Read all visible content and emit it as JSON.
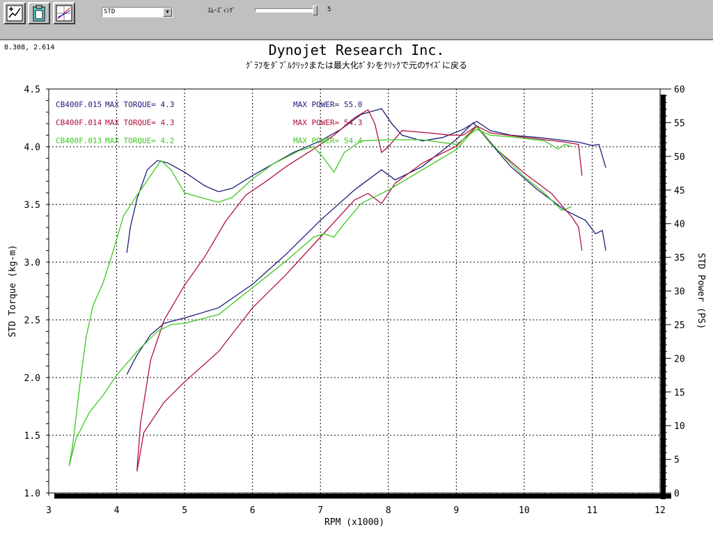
{
  "toolbar": {
    "buttons": [
      {
        "name": "graph-tool-button",
        "icon": "wrench-graph-icon"
      },
      {
        "name": "clipboard-button",
        "icon": "clipboard-icon"
      },
      {
        "name": "chart-window-button",
        "icon": "chart-grid-icon"
      }
    ],
    "combo_value": "STD",
    "smoothing_label": "ｽﾑｰｽﾞｨﾝｸﾞ",
    "smoothing_value": "5",
    "smoothing_level": 1.0
  },
  "cursor_coords": "8.308, 2.614",
  "chart_data": {
    "type": "line",
    "title": "Dynojet  Research  Inc.",
    "subtitle": "ｸﾞﾗﾌをﾀﾞﾌﾞﾙｸﾘｯｸまたは最大化ﾎﾞﾀﾝをｸﾘｯｸで元のｻｲｽﾞに戻る",
    "xlabel": "RPM (x1000)",
    "ylabel_left": "STD Torque (kg-m)",
    "ylabel_right": "STD Power (PS)",
    "xlim": [
      3,
      12
    ],
    "ylim_left": [
      1.0,
      4.5
    ],
    "ylim_right": [
      0,
      60
    ],
    "x_ticks": [
      "3",
      "4",
      "5",
      "6",
      "7",
      "8",
      "9",
      "10",
      "11",
      "12"
    ],
    "y_left_ticks": [
      "1.0",
      "1.5",
      "2.0",
      "2.5",
      "3.0",
      "3.5",
      "4.0",
      "4.5"
    ],
    "y_right_ticks": [
      "0",
      "5",
      "10",
      "15",
      "20",
      "25",
      "30",
      "35",
      "40",
      "45",
      "50",
      "55",
      "60"
    ],
    "grid": true,
    "legend": [
      {
        "file": "CB400F.015",
        "torque": "MAX TORQUE= 4.3",
        "power": "MAX POWER= 55.0",
        "color": "#1c1c78"
      },
      {
        "file": "CB400F.014",
        "torque": "MAX TORQUE= 4.3",
        "power": "MAX POWER= 54.3",
        "color": "#b0103c"
      },
      {
        "file": "CB400F.013",
        "torque": "MAX TORQUE= 4.2",
        "power": "MAX POWER= 54.4",
        "color": "#3cc820"
      }
    ],
    "series": [
      {
        "color": "#1c1c78",
        "axis": "left",
        "kind": "torque",
        "points": [
          [
            4.15,
            3.08
          ],
          [
            4.2,
            3.3
          ],
          [
            4.3,
            3.55
          ],
          [
            4.45,
            3.8
          ],
          [
            4.6,
            3.88
          ],
          [
            4.75,
            3.86
          ],
          [
            5.0,
            3.78
          ],
          [
            5.3,
            3.66
          ],
          [
            5.5,
            3.61
          ],
          [
            5.7,
            3.64
          ],
          [
            6.0,
            3.75
          ],
          [
            6.3,
            3.85
          ],
          [
            6.6,
            3.95
          ],
          [
            7.0,
            4.05
          ],
          [
            7.3,
            4.15
          ],
          [
            7.6,
            4.28
          ],
          [
            7.9,
            4.33
          ],
          [
            8.05,
            4.2
          ],
          [
            8.2,
            4.1
          ],
          [
            8.5,
            4.05
          ],
          [
            8.8,
            4.08
          ],
          [
            9.1,
            4.15
          ],
          [
            9.3,
            4.22
          ],
          [
            9.5,
            4.14
          ],
          [
            9.8,
            4.1
          ],
          [
            10.2,
            4.08
          ],
          [
            10.5,
            4.06
          ],
          [
            10.8,
            4.04
          ],
          [
            11.0,
            4.01
          ],
          [
            11.1,
            4.02
          ],
          [
            11.2,
            3.82
          ]
        ]
      },
      {
        "color": "#1c1c78",
        "axis": "right",
        "kind": "power",
        "points": [
          [
            4.15,
            17.6
          ],
          [
            4.3,
            20.5
          ],
          [
            4.5,
            23.5
          ],
          [
            4.7,
            25.2
          ],
          [
            5.0,
            26.0
          ],
          [
            5.5,
            27.5
          ],
          [
            6.0,
            31.0
          ],
          [
            6.5,
            35.5
          ],
          [
            7.0,
            40.5
          ],
          [
            7.5,
            45.0
          ],
          [
            7.7,
            46.5
          ],
          [
            7.9,
            48.0
          ],
          [
            8.1,
            46.5
          ],
          [
            8.5,
            48.5
          ],
          [
            9.0,
            52.5
          ],
          [
            9.25,
            55.0
          ],
          [
            9.5,
            52.0
          ],
          [
            9.8,
            48.5
          ],
          [
            10.2,
            45.0
          ],
          [
            10.6,
            42.0
          ],
          [
            10.9,
            40.5
          ],
          [
            11.05,
            38.5
          ],
          [
            11.15,
            39.0
          ],
          [
            11.2,
            36.0
          ]
        ]
      },
      {
        "color": "#b0103c",
        "axis": "left",
        "kind": "torque",
        "points": [
          [
            4.3,
            1.2
          ],
          [
            4.35,
            1.6
          ],
          [
            4.5,
            2.15
          ],
          [
            4.7,
            2.5
          ],
          [
            5.0,
            2.8
          ],
          [
            5.3,
            3.05
          ],
          [
            5.6,
            3.35
          ],
          [
            5.9,
            3.58
          ],
          [
            6.2,
            3.7
          ],
          [
            6.5,
            3.83
          ],
          [
            6.9,
            3.98
          ],
          [
            7.2,
            4.1
          ],
          [
            7.5,
            4.25
          ],
          [
            7.7,
            4.32
          ],
          [
            7.8,
            4.2
          ],
          [
            7.9,
            3.95
          ],
          [
            8.0,
            4.0
          ],
          [
            8.2,
            4.14
          ],
          [
            8.6,
            4.12
          ],
          [
            8.9,
            4.1
          ],
          [
            9.1,
            4.1
          ],
          [
            9.3,
            4.18
          ],
          [
            9.5,
            4.12
          ],
          [
            9.9,
            4.09
          ],
          [
            10.3,
            4.06
          ],
          [
            10.6,
            4.04
          ],
          [
            10.8,
            4.02
          ],
          [
            10.85,
            3.75
          ]
        ]
      },
      {
        "color": "#b0103c",
        "axis": "right",
        "kind": "power",
        "points": [
          [
            4.3,
            3.2
          ],
          [
            4.4,
            9.0
          ],
          [
            4.7,
            13.5
          ],
          [
            5.0,
            16.5
          ],
          [
            5.5,
            21.0
          ],
          [
            6.0,
            27.5
          ],
          [
            6.5,
            32.5
          ],
          [
            7.0,
            38.0
          ],
          [
            7.5,
            43.5
          ],
          [
            7.7,
            44.5
          ],
          [
            7.9,
            43.0
          ],
          [
            8.1,
            46.0
          ],
          [
            8.5,
            49.0
          ],
          [
            9.0,
            51.5
          ],
          [
            9.3,
            54.5
          ],
          [
            9.6,
            51.0
          ],
          [
            10.0,
            47.5
          ],
          [
            10.4,
            44.5
          ],
          [
            10.7,
            41.0
          ],
          [
            10.8,
            39.5
          ],
          [
            10.85,
            36.0
          ]
        ]
      },
      {
        "color": "#3cc820",
        "axis": "left",
        "kind": "torque",
        "points": [
          [
            3.3,
            1.24
          ],
          [
            3.35,
            1.4
          ],
          [
            3.45,
            1.9
          ],
          [
            3.55,
            2.35
          ],
          [
            3.65,
            2.62
          ],
          [
            3.8,
            2.82
          ],
          [
            3.95,
            3.1
          ],
          [
            4.1,
            3.4
          ],
          [
            4.3,
            3.58
          ],
          [
            4.5,
            3.75
          ],
          [
            4.65,
            3.88
          ],
          [
            4.8,
            3.8
          ],
          [
            5.0,
            3.6
          ],
          [
            5.3,
            3.55
          ],
          [
            5.5,
            3.52
          ],
          [
            5.7,
            3.56
          ],
          [
            6.0,
            3.72
          ],
          [
            6.3,
            3.85
          ],
          [
            6.7,
            3.97
          ],
          [
            6.9,
            4.0
          ],
          [
            7.05,
            3.9
          ],
          [
            7.2,
            3.78
          ],
          [
            7.35,
            3.95
          ],
          [
            7.6,
            4.05
          ],
          [
            8.0,
            4.06
          ],
          [
            8.5,
            4.06
          ],
          [
            9.0,
            4.02
          ],
          [
            9.3,
            4.15
          ],
          [
            9.5,
            4.1
          ],
          [
            9.9,
            4.08
          ],
          [
            10.3,
            4.05
          ],
          [
            10.5,
            3.98
          ],
          [
            10.6,
            4.02
          ],
          [
            10.7,
            4.0
          ]
        ]
      },
      {
        "color": "#3cc820",
        "axis": "right",
        "kind": "power",
        "points": [
          [
            3.3,
            4.0
          ],
          [
            3.4,
            8.0
          ],
          [
            3.6,
            12.0
          ],
          [
            3.8,
            14.5
          ],
          [
            4.0,
            17.5
          ],
          [
            4.3,
            21.0
          ],
          [
            4.6,
            24.0
          ],
          [
            4.8,
            25.0
          ],
          [
            5.0,
            25.2
          ],
          [
            5.5,
            26.5
          ],
          [
            6.0,
            30.5
          ],
          [
            6.5,
            34.5
          ],
          [
            6.9,
            38.0
          ],
          [
            7.05,
            38.5
          ],
          [
            7.2,
            38.0
          ],
          [
            7.35,
            40.0
          ],
          [
            7.6,
            43.0
          ],
          [
            8.0,
            45.0
          ],
          [
            8.5,
            48.0
          ],
          [
            9.0,
            51.0
          ],
          [
            9.3,
            54.4
          ],
          [
            9.6,
            51.0
          ],
          [
            10.0,
            47.0
          ],
          [
            10.3,
            44.5
          ],
          [
            10.55,
            42.0
          ],
          [
            10.7,
            42.5
          ]
        ]
      }
    ]
  }
}
